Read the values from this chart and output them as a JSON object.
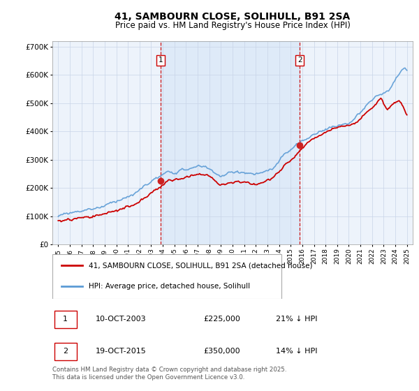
{
  "title1": "41, SAMBOURN CLOSE, SOLIHULL, B91 2SA",
  "title2": "Price paid vs. HM Land Registry's House Price Index (HPI)",
  "ylim": [
    0,
    720000
  ],
  "yticks": [
    0,
    100000,
    200000,
    300000,
    400000,
    500000,
    600000,
    700000
  ],
  "ytick_labels": [
    "£0",
    "£100K",
    "£200K",
    "£300K",
    "£400K",
    "£500K",
    "£600K",
    "£700K"
  ],
  "hpi_color": "#5b9bd5",
  "price_color": "#cc0000",
  "vline_color": "#cc0000",
  "shade_color": "#cce0f5",
  "purchase1_date": 2003.79,
  "purchase1_price": 225000,
  "purchase2_date": 2015.79,
  "purchase2_price": 350000,
  "legend_line1": "41, SAMBOURN CLOSE, SOLIHULL, B91 2SA (detached house)",
  "legend_line2": "HPI: Average price, detached house, Solihull",
  "note1_label": "1",
  "note1_date": "10-OCT-2003",
  "note1_price": "£225,000",
  "note1_hpi": "21% ↓ HPI",
  "note2_label": "2",
  "note2_date": "19-OCT-2015",
  "note2_price": "£350,000",
  "note2_hpi": "14% ↓ HPI",
  "footer": "Contains HM Land Registry data © Crown copyright and database right 2025.\nThis data is licensed under the Open Government Licence v3.0.",
  "background_color": "#ffffff",
  "plot_bg_color": "#edf3fb"
}
